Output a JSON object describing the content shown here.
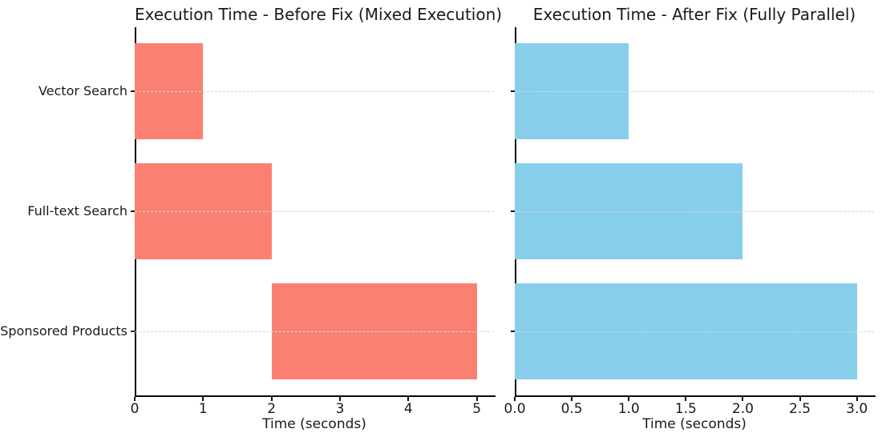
{
  "figure": {
    "background": "#ffffff",
    "text_color": "#1a1a1a",
    "spine_color": "#0a0a0a",
    "gridline_color": "#d9d9d9"
  },
  "chart_data": [
    {
      "type": "bar",
      "orientation": "horizontal",
      "title": "Execution Time - Before Fix (Mixed Execution)",
      "xlabel": "Time (seconds)",
      "ylabel": "",
      "bar_color": "#FA8072",
      "bar_color_name": "salmon",
      "categories": [
        "Vector Search",
        "Full-text Search",
        "Sponsored Products"
      ],
      "series": [
        {
          "name": "Vector Search",
          "start": 0,
          "end": 1,
          "duration": 1
        },
        {
          "name": "Full-text Search",
          "start": 0,
          "end": 2,
          "duration": 2
        },
        {
          "name": "Sponsored Products",
          "start": 2,
          "end": 5,
          "duration": 3
        }
      ],
      "xlim": [
        0,
        5.25
      ],
      "xticks": [
        0,
        1,
        2,
        3,
        4,
        5
      ],
      "xtick_labels": [
        "0",
        "1",
        "2",
        "3",
        "4",
        "5"
      ],
      "grid": "horizontal-dashed",
      "legend": "none",
      "show_category_labels": true
    },
    {
      "type": "bar",
      "orientation": "horizontal",
      "title": "Execution Time - After Fix (Fully Parallel)",
      "xlabel": "Time (seconds)",
      "ylabel": "",
      "bar_color": "#87CEEB",
      "bar_color_name": "skyblue",
      "categories": [
        "Vector Search",
        "Full-text Search",
        "Sponsored Products"
      ],
      "series": [
        {
          "name": "Vector Search",
          "start": 0,
          "end": 1,
          "duration": 1
        },
        {
          "name": "Full-text Search",
          "start": 0,
          "end": 2,
          "duration": 2
        },
        {
          "name": "Sponsored Products",
          "start": 0,
          "end": 3,
          "duration": 3
        }
      ],
      "xlim": [
        0,
        3.15
      ],
      "xticks": [
        0,
        0.5,
        1,
        1.5,
        2,
        2.5,
        3
      ],
      "xtick_labels": [
        "0.0",
        "0.5",
        "1.0",
        "1.5",
        "2.0",
        "2.5",
        "3.0"
      ],
      "grid": "horizontal-dashed",
      "legend": "none",
      "show_category_labels": false
    }
  ]
}
